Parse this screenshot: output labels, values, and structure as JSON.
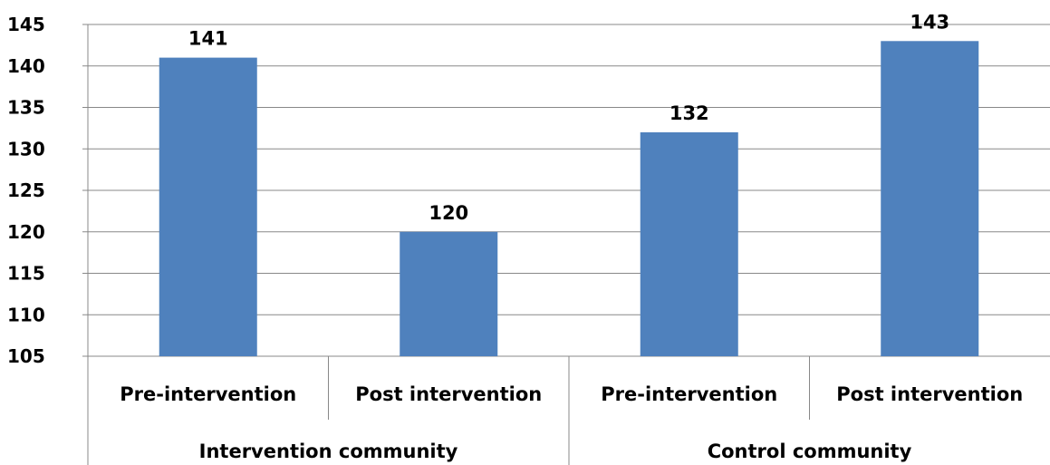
{
  "chart_data": {
    "type": "bar",
    "categories": [
      "Pre-intervention",
      "Post intervention",
      "Pre-intervention",
      "Post intervention"
    ],
    "groups": [
      {
        "label": "Intervention community",
        "categories": [
          0,
          1
        ]
      },
      {
        "label": "Control community",
        "categories": [
          2,
          3
        ]
      }
    ],
    "values": [
      141,
      120,
      132,
      143
    ],
    "data_labels": [
      "141",
      "120",
      "132",
      "143"
    ],
    "ylim": [
      105,
      145
    ],
    "yticks": [
      105,
      110,
      115,
      120,
      125,
      130,
      135,
      140,
      145
    ],
    "grid": true,
    "legend": "none",
    "title": "",
    "xlabel": "",
    "ylabel": "",
    "colors": {
      "bar": "#4f81bd",
      "grid": "#888888",
      "axis": "#888888"
    }
  }
}
